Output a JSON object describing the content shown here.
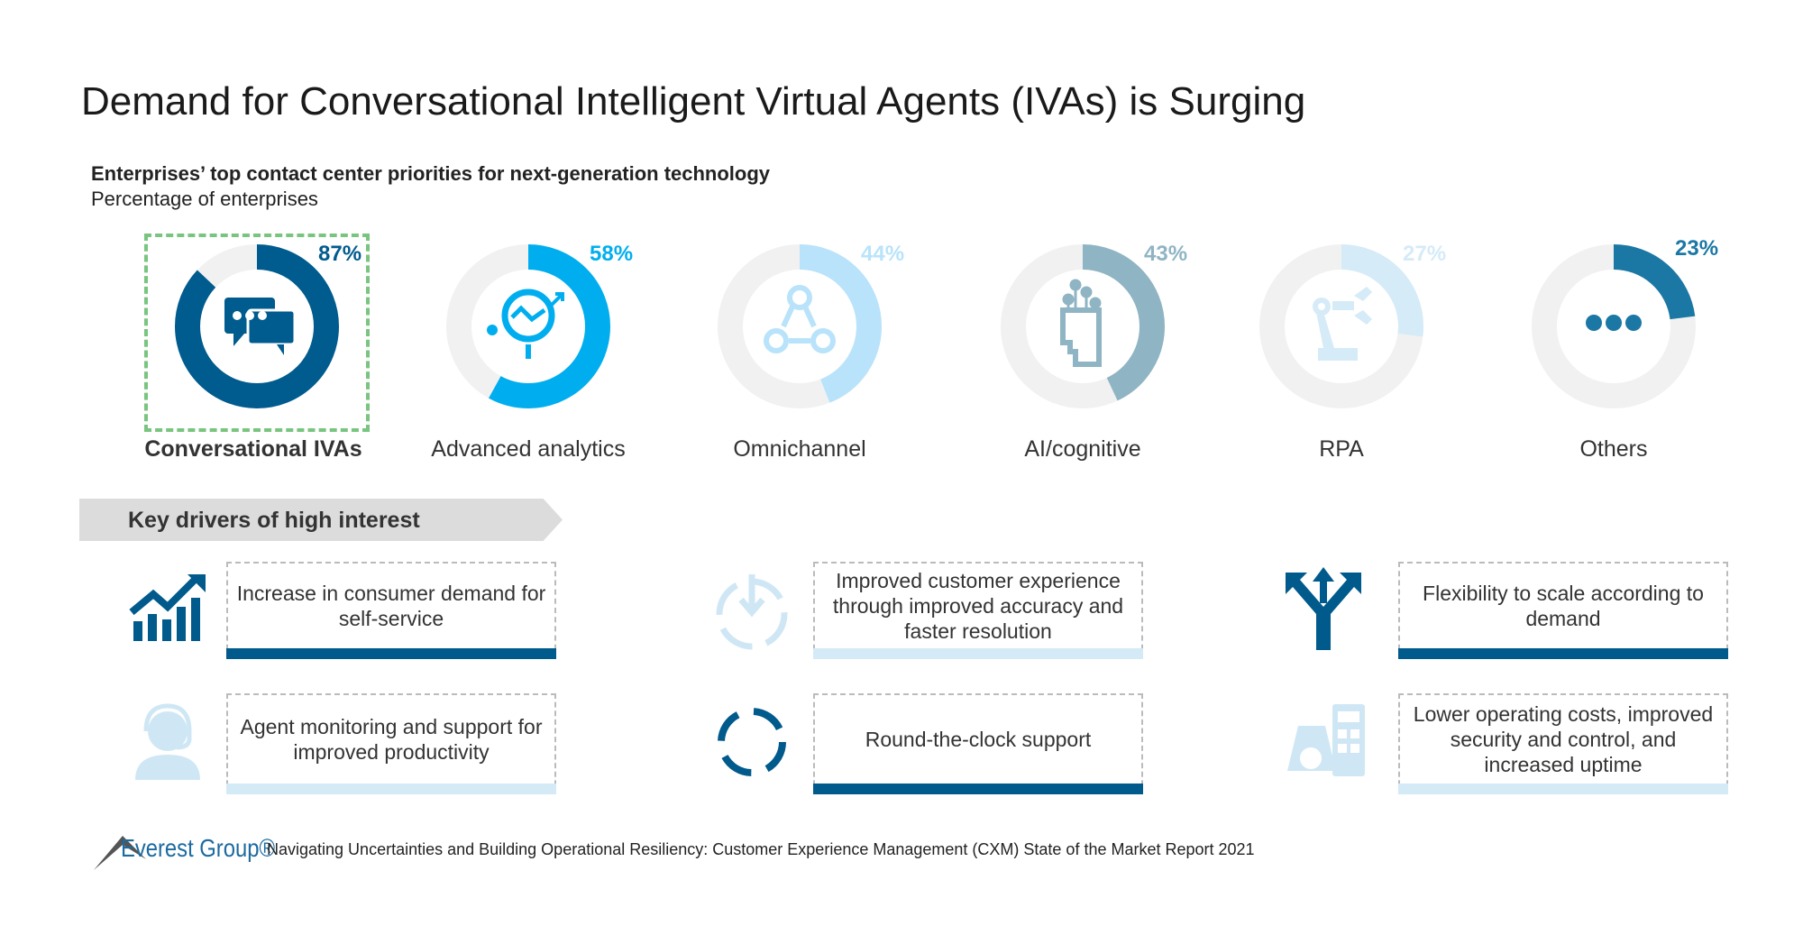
{
  "title": "Demand for Conversational Intelligent Virtual Agents (IVAs) is Surging",
  "subtitle": "Enterprises’ top contact center priorities for next-generation technology",
  "subtitle2": "Percentage of enterprises",
  "chart_data": {
    "type": "donut",
    "categories": [
      "Conversational IVAs",
      "Advanced analytics",
      "Omnichannel",
      "AI/cognitive",
      "RPA",
      "Others"
    ],
    "values": [
      87,
      58,
      44,
      43,
      27,
      23
    ],
    "labels": [
      "87%",
      "58%",
      "44%",
      "43%",
      "27%",
      "23%"
    ],
    "colors": [
      "#005b8e",
      "#00aeef",
      "#b9e3fa",
      "#8fb4c4",
      "#d5ebf7",
      "#1b77a4"
    ],
    "track_color": "#f1f1f1",
    "icons": [
      "chat-bubbles-icon",
      "magnifier-analytics-icon",
      "network-nodes-icon",
      "ai-head-icon",
      "robot-arm-icon",
      "ellipsis-icon"
    ],
    "highlighted": "Conversational IVAs"
  },
  "drivers": {
    "banner": "Key drivers of high interest",
    "items": [
      {
        "text": "Increase in consumer demand for self-service",
        "icon": "growth-chart-icon",
        "bar_color": "#005a8c"
      },
      {
        "text": "Improved customer experience through improved accuracy and faster resolution",
        "icon": "converge-arrows-icon",
        "bar_color": "#d4eaf7"
      },
      {
        "text": "Flexibility to scale according to demand",
        "icon": "split-arrows-icon",
        "bar_color": "#005a8c"
      },
      {
        "text": "Agent monitoring and support for improved productivity",
        "icon": "agent-headset-icon",
        "bar_color": "#d4eaf7"
      },
      {
        "text": "Round-the-clock support",
        "icon": "cycle-arrows-icon",
        "bar_color": "#005a8c"
      },
      {
        "text": "Lower operating costs, improved security and control, and increased uptime",
        "icon": "money-calculator-icon",
        "bar_color": "#d4eaf7"
      }
    ]
  },
  "footer": {
    "logo": "Everest Group®",
    "source": "Navigating Uncertainties and Building Operational Resiliency: Customer Experience Management (CXM) State of the Market Report 2021"
  }
}
